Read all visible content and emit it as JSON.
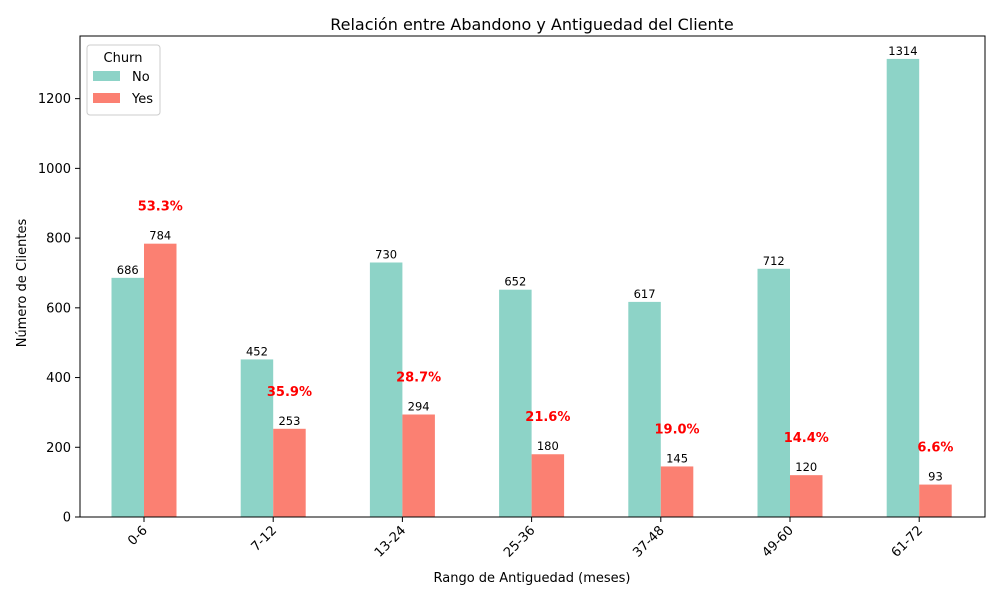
{
  "chart_data": {
    "type": "bar",
    "title": "Relación entre Abandono y Antiguedad del Cliente",
    "xlabel": "Rango de Antiguedad (meses)",
    "ylabel": "Número de Clientes",
    "categories": [
      "0-6",
      "7-12",
      "13-24",
      "25-36",
      "37-48",
      "49-60",
      "61-72"
    ],
    "series": [
      {
        "name": "No",
        "color": "#8dd3c7",
        "values": [
          686,
          452,
          730,
          652,
          617,
          712,
          1314
        ]
      },
      {
        "name": "Yes",
        "color": "#fb8072",
        "values": [
          784,
          253,
          294,
          180,
          145,
          120,
          93
        ]
      }
    ],
    "churn_rate_labels": [
      "53.3%",
      "35.9%",
      "28.7%",
      "21.6%",
      "19.0%",
      "14.4%",
      "6.6%"
    ],
    "churn_rate_color": "#ff0000",
    "ylim": [
      0,
      1379.7
    ],
    "yticks": [
      0,
      200,
      400,
      600,
      800,
      1000,
      1200
    ],
    "legend": {
      "title": "Churn",
      "position": "top-left"
    },
    "grid": false,
    "xtick_rotation": 45
  }
}
